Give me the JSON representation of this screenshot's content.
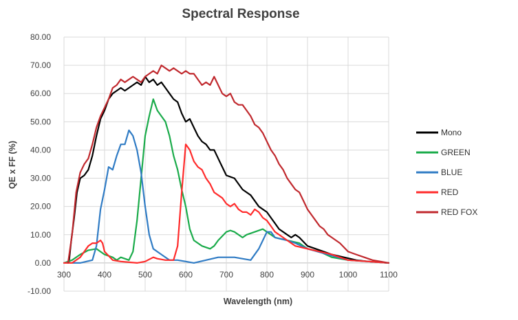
{
  "chart_data": {
    "type": "line",
    "title": "Spectral Response",
    "xlabel": "Wavelength (nm)",
    "ylabel": "QE x FF (%)",
    "xlim": [
      300,
      1100
    ],
    "ylim": [
      -10,
      80
    ],
    "xticks": [
      300,
      400,
      500,
      600,
      700,
      800,
      900,
      1000,
      1100
    ],
    "xtick_labels": [
      "300",
      "400",
      "500",
      "600",
      "700",
      "800",
      "900",
      "1000",
      "1100"
    ],
    "yticks": [
      -10,
      0,
      10,
      20,
      30,
      40,
      50,
      60,
      70,
      80
    ],
    "ytick_labels": [
      "-10.00",
      "0.00",
      "10.00",
      "20.00",
      "30.00",
      "40.00",
      "50.00",
      "60.00",
      "70.00",
      "80.00"
    ],
    "grid": "horizontal and vertical",
    "legend_position": "right",
    "series": [
      {
        "name": "Mono",
        "color": "#000000",
        "points": [
          [
            312,
            0
          ],
          [
            318,
            8
          ],
          [
            325,
            16
          ],
          [
            332,
            25
          ],
          [
            340,
            30
          ],
          [
            350,
            31
          ],
          [
            360,
            33
          ],
          [
            370,
            38
          ],
          [
            380,
            45
          ],
          [
            390,
            51
          ],
          [
            400,
            54
          ],
          [
            410,
            58
          ],
          [
            420,
            60
          ],
          [
            430,
            61
          ],
          [
            440,
            62
          ],
          [
            450,
            61
          ],
          [
            460,
            62
          ],
          [
            470,
            63
          ],
          [
            480,
            64
          ],
          [
            490,
            63
          ],
          [
            500,
            66
          ],
          [
            510,
            64
          ],
          [
            520,
            65
          ],
          [
            530,
            63
          ],
          [
            540,
            64
          ],
          [
            550,
            62
          ],
          [
            560,
            60
          ],
          [
            570,
            58
          ],
          [
            580,
            57
          ],
          [
            590,
            53
          ],
          [
            600,
            50
          ],
          [
            610,
            51
          ],
          [
            620,
            48
          ],
          [
            630,
            45
          ],
          [
            640,
            43
          ],
          [
            650,
            42
          ],
          [
            660,
            40
          ],
          [
            670,
            40
          ],
          [
            680,
            37
          ],
          [
            690,
            34
          ],
          [
            700,
            31
          ],
          [
            720,
            30
          ],
          [
            740,
            26
          ],
          [
            760,
            24
          ],
          [
            780,
            20
          ],
          [
            790,
            19
          ],
          [
            800,
            18
          ],
          [
            810,
            16
          ],
          [
            820,
            14
          ],
          [
            830,
            12
          ],
          [
            840,
            11
          ],
          [
            850,
            10
          ],
          [
            860,
            9
          ],
          [
            870,
            10
          ],
          [
            880,
            9
          ],
          [
            900,
            6
          ],
          [
            920,
            5
          ],
          [
            940,
            4
          ],
          [
            960,
            3
          ],
          [
            990,
            2
          ],
          [
            1020,
            1
          ],
          [
            1050,
            0.5
          ],
          [
            1100,
            0
          ]
        ]
      },
      {
        "name": "GREEN",
        "color": "#1aab4a",
        "points": [
          [
            300,
            0
          ],
          [
            320,
            1
          ],
          [
            340,
            3
          ],
          [
            360,
            4.5
          ],
          [
            380,
            5
          ],
          [
            400,
            3
          ],
          [
            420,
            2
          ],
          [
            430,
            1
          ],
          [
            440,
            2
          ],
          [
            450,
            1.5
          ],
          [
            460,
            1
          ],
          [
            470,
            4
          ],
          [
            480,
            15
          ],
          [
            490,
            30
          ],
          [
            500,
            45
          ],
          [
            510,
            52
          ],
          [
            520,
            58
          ],
          [
            530,
            54
          ],
          [
            540,
            52
          ],
          [
            550,
            50
          ],
          [
            560,
            45
          ],
          [
            570,
            38
          ],
          [
            580,
            33
          ],
          [
            590,
            26
          ],
          [
            600,
            20
          ],
          [
            610,
            12
          ],
          [
            620,
            8
          ],
          [
            640,
            6
          ],
          [
            660,
            5
          ],
          [
            670,
            6
          ],
          [
            680,
            8
          ],
          [
            700,
            11
          ],
          [
            710,
            11.5
          ],
          [
            720,
            11
          ],
          [
            740,
            9
          ],
          [
            750,
            10
          ],
          [
            770,
            11
          ],
          [
            790,
            12
          ],
          [
            800,
            11
          ],
          [
            820,
            9
          ],
          [
            850,
            8
          ],
          [
            880,
            7
          ],
          [
            900,
            5
          ],
          [
            930,
            4
          ],
          [
            960,
            2
          ],
          [
            1000,
            1
          ],
          [
            1050,
            0.5
          ],
          [
            1100,
            0
          ]
        ]
      },
      {
        "name": "BLUE",
        "color": "#2f7bc4",
        "points": [
          [
            300,
            0
          ],
          [
            340,
            0
          ],
          [
            370,
            1
          ],
          [
            380,
            6
          ],
          [
            390,
            19
          ],
          [
            400,
            26
          ],
          [
            410,
            34
          ],
          [
            420,
            33
          ],
          [
            430,
            38
          ],
          [
            440,
            42
          ],
          [
            450,
            42
          ],
          [
            460,
            47
          ],
          [
            470,
            45
          ],
          [
            480,
            40
          ],
          [
            490,
            32
          ],
          [
            500,
            20
          ],
          [
            510,
            10
          ],
          [
            520,
            5
          ],
          [
            540,
            3
          ],
          [
            560,
            1
          ],
          [
            580,
            1
          ],
          [
            600,
            0.5
          ],
          [
            620,
            0
          ],
          [
            650,
            1
          ],
          [
            680,
            2
          ],
          [
            720,
            2
          ],
          [
            760,
            1
          ],
          [
            780,
            5
          ],
          [
            790,
            8
          ],
          [
            800,
            11
          ],
          [
            810,
            11
          ],
          [
            820,
            9
          ],
          [
            850,
            8
          ],
          [
            870,
            7
          ],
          [
            900,
            5
          ],
          [
            950,
            3
          ],
          [
            1000,
            1
          ],
          [
            1100,
            0
          ]
        ]
      },
      {
        "name": "RED",
        "color": "#ff2a2a",
        "points": [
          [
            300,
            0
          ],
          [
            320,
            0
          ],
          [
            340,
            2
          ],
          [
            360,
            6
          ],
          [
            370,
            7
          ],
          [
            380,
            7
          ],
          [
            390,
            8
          ],
          [
            395,
            7
          ],
          [
            400,
            4
          ],
          [
            420,
            1
          ],
          [
            440,
            0.5
          ],
          [
            480,
            0
          ],
          [
            500,
            0.5
          ],
          [
            520,
            2
          ],
          [
            530,
            1.5
          ],
          [
            550,
            1
          ],
          [
            570,
            1
          ],
          [
            580,
            6
          ],
          [
            590,
            25
          ],
          [
            600,
            42
          ],
          [
            610,
            40
          ],
          [
            620,
            36
          ],
          [
            630,
            34
          ],
          [
            640,
            33
          ],
          [
            650,
            30
          ],
          [
            660,
            28
          ],
          [
            670,
            25
          ],
          [
            680,
            24
          ],
          [
            690,
            23
          ],
          [
            700,
            21
          ],
          [
            710,
            20
          ],
          [
            720,
            21
          ],
          [
            730,
            19
          ],
          [
            740,
            18
          ],
          [
            750,
            18
          ],
          [
            760,
            17
          ],
          [
            770,
            19
          ],
          [
            780,
            18
          ],
          [
            790,
            16
          ],
          [
            800,
            15
          ],
          [
            810,
            13
          ],
          [
            820,
            11
          ],
          [
            830,
            10
          ],
          [
            850,
            8
          ],
          [
            870,
            6
          ],
          [
            900,
            5
          ],
          [
            930,
            4
          ],
          [
            960,
            3
          ],
          [
            1000,
            1
          ],
          [
            1050,
            0.5
          ],
          [
            1100,
            0
          ]
        ]
      },
      {
        "name": "RED FOX",
        "color": "#c0282d",
        "points": [
          [
            310,
            0
          ],
          [
            320,
            10
          ],
          [
            330,
            25
          ],
          [
            340,
            32
          ],
          [
            350,
            35
          ],
          [
            360,
            37
          ],
          [
            370,
            42
          ],
          [
            380,
            48
          ],
          [
            390,
            52
          ],
          [
            400,
            55
          ],
          [
            410,
            58
          ],
          [
            420,
            62
          ],
          [
            430,
            63
          ],
          [
            440,
            65
          ],
          [
            450,
            64
          ],
          [
            460,
            65
          ],
          [
            470,
            66
          ],
          [
            480,
            65
          ],
          [
            490,
            64
          ],
          [
            500,
            66
          ],
          [
            510,
            67
          ],
          [
            520,
            68
          ],
          [
            530,
            67
          ],
          [
            540,
            70
          ],
          [
            550,
            69
          ],
          [
            560,
            68
          ],
          [
            570,
            69
          ],
          [
            580,
            68
          ],
          [
            590,
            67
          ],
          [
            600,
            68
          ],
          [
            610,
            67
          ],
          [
            620,
            67
          ],
          [
            630,
            65
          ],
          [
            640,
            63
          ],
          [
            650,
            64
          ],
          [
            660,
            63
          ],
          [
            670,
            66
          ],
          [
            680,
            63
          ],
          [
            690,
            60
          ],
          [
            700,
            59
          ],
          [
            710,
            60
          ],
          [
            720,
            57
          ],
          [
            730,
            56
          ],
          [
            740,
            56
          ],
          [
            750,
            54
          ],
          [
            760,
            52
          ],
          [
            770,
            49
          ],
          [
            780,
            48
          ],
          [
            790,
            46
          ],
          [
            800,
            43
          ],
          [
            810,
            40
          ],
          [
            820,
            38
          ],
          [
            830,
            35
          ],
          [
            840,
            33
          ],
          [
            850,
            30
          ],
          [
            860,
            28
          ],
          [
            870,
            26
          ],
          [
            880,
            25
          ],
          [
            890,
            22
          ],
          [
            900,
            19
          ],
          [
            910,
            17
          ],
          [
            920,
            15
          ],
          [
            930,
            13
          ],
          [
            940,
            12
          ],
          [
            950,
            10
          ],
          [
            960,
            9
          ],
          [
            970,
            8
          ],
          [
            980,
            7
          ],
          [
            1000,
            4
          ],
          [
            1020,
            3
          ],
          [
            1040,
            2
          ],
          [
            1060,
            1
          ],
          [
            1080,
            0.5
          ],
          [
            1100,
            0
          ]
        ]
      }
    ]
  }
}
